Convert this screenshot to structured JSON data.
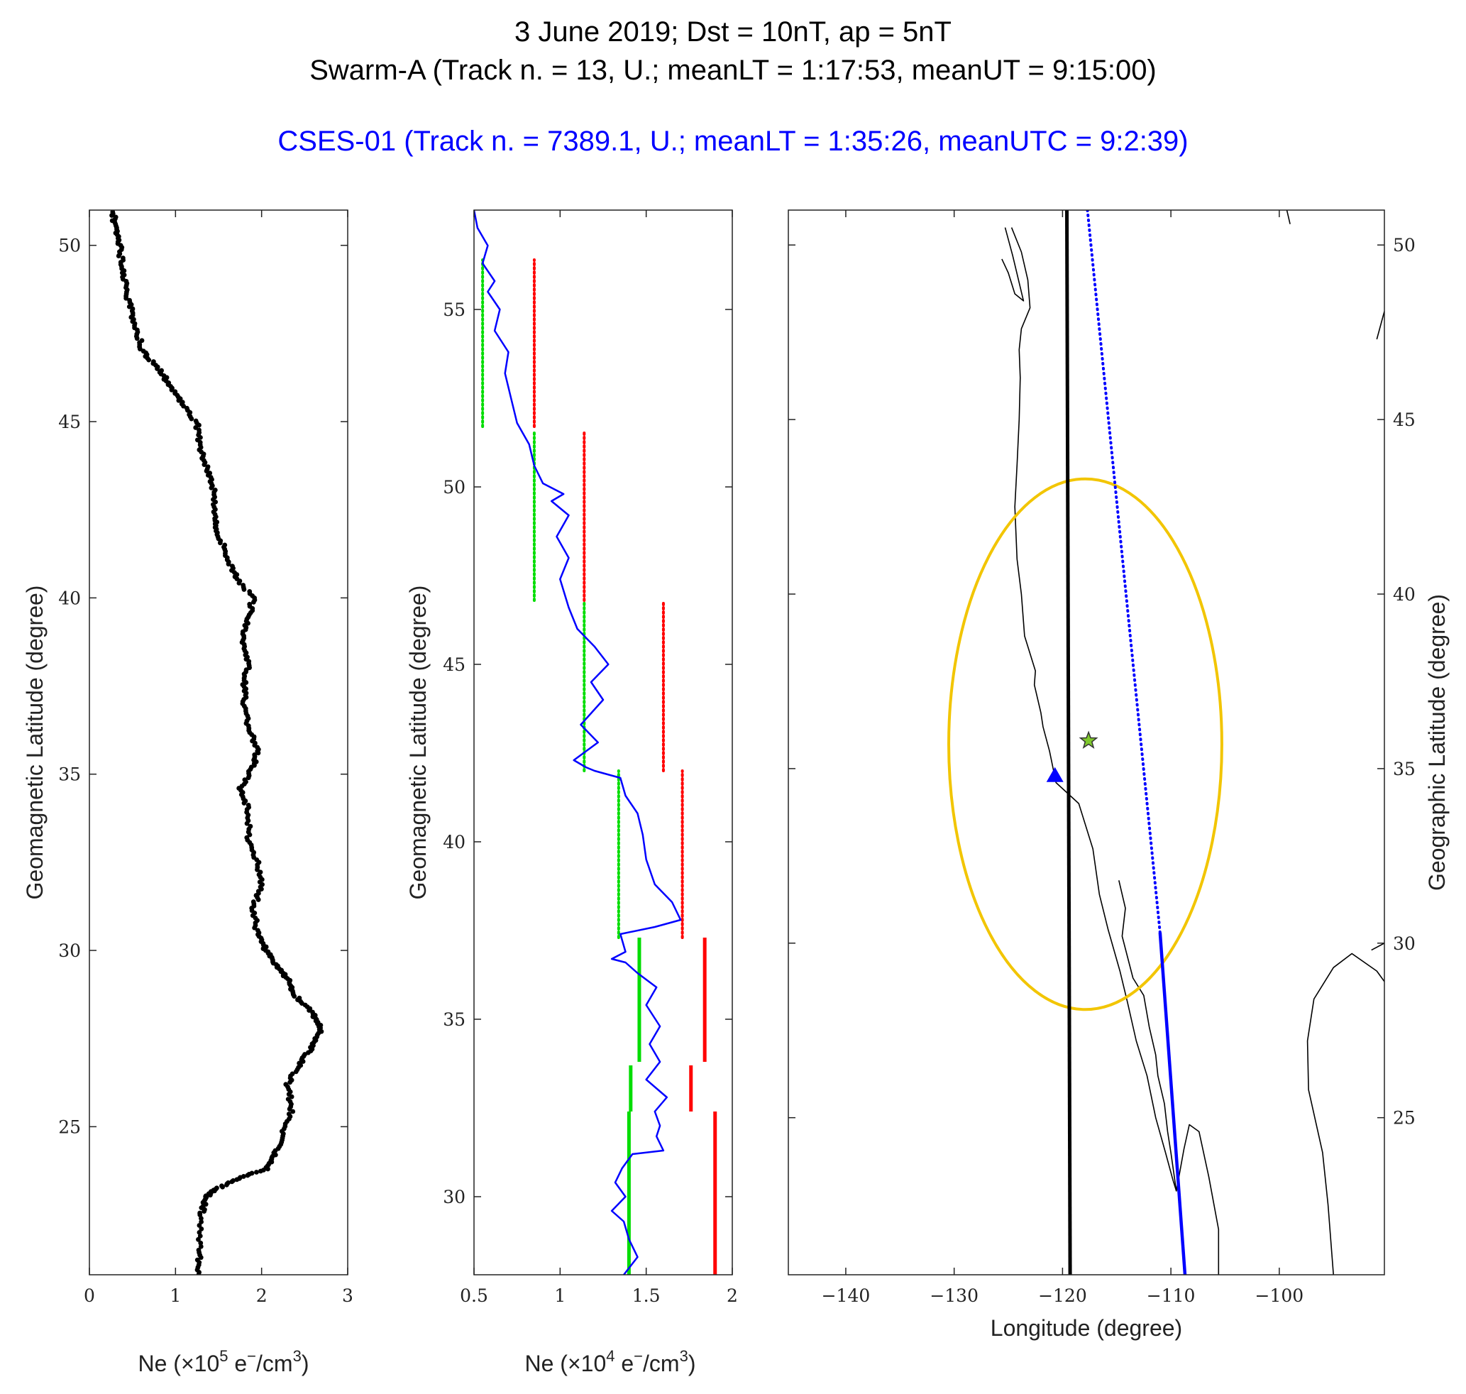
{
  "titles": {
    "line1": "3 June 2019; Dst = 10nT, ap = 5nT",
    "line2": "Swarm-A (Track n. = 13, U.; meanLT = 1:17:53, meanUT = 9:15:00)",
    "line3": "CSES-01 (Track n. = 7389.1, U.; meanLT = 1:35:26, meanUTC = 9:2:39)"
  },
  "colors": {
    "swarm": "#000000",
    "cses": "#0000ff",
    "mean_marker": "#00dd00",
    "threshold_marker": "#ff0000",
    "ellipse": "#f2c500",
    "epicenter_star": "#7fc92c",
    "station_triangle": "#0000ff",
    "coast": "#000000"
  },
  "chart_data": [
    {
      "id": "swarm-profile",
      "type": "scatter",
      "xlim": [
        0,
        3
      ],
      "ylim": [
        20.8,
        51
      ],
      "xticks": [
        "0",
        "1",
        "2",
        "3"
      ],
      "yticks": [
        "25",
        "30",
        "35",
        "40",
        "45",
        "50"
      ],
      "ylabel": "Geomagnetic Latitude (degree)",
      "xlabel_prefix": "Ne (×10",
      "xlabel_exp": "5",
      "xlabel_unit": " e",
      "xlabel_sup": "−",
      "xlabel_tail": "/cm",
      "xlabel_sup3": "3",
      "xlabel_close": ")",
      "series": [
        {
          "name": "Swarm-A Ne",
          "points": [
            [
              1.27,
              20.8
            ],
            [
              1.28,
              21.5
            ],
            [
              1.3,
              22.5
            ],
            [
              1.35,
              23.0
            ],
            [
              1.45,
              23.2
            ],
            [
              1.7,
              23.5
            ],
            [
              2.05,
              23.8
            ],
            [
              2.15,
              24.2
            ],
            [
              2.25,
              24.8
            ],
            [
              2.35,
              25.5
            ],
            [
              2.3,
              26.2
            ],
            [
              2.45,
              26.8
            ],
            [
              2.6,
              27.3
            ],
            [
              2.7,
              27.8
            ],
            [
              2.6,
              28.2
            ],
            [
              2.4,
              28.7
            ],
            [
              2.3,
              29.2
            ],
            [
              2.15,
              29.6
            ],
            [
              2.05,
              30.0
            ],
            [
              1.95,
              30.5
            ],
            [
              1.9,
              31.2
            ],
            [
              2.0,
              31.8
            ],
            [
              1.95,
              32.5
            ],
            [
              1.85,
              33.2
            ],
            [
              1.85,
              34.0
            ],
            [
              1.75,
              34.6
            ],
            [
              1.9,
              35.2
            ],
            [
              1.95,
              35.7
            ],
            [
              1.85,
              36.3
            ],
            [
              1.8,
              37.0
            ],
            [
              1.8,
              37.6
            ],
            [
              1.85,
              38.2
            ],
            [
              1.78,
              38.8
            ],
            [
              1.85,
              39.4
            ],
            [
              1.9,
              40.0
            ],
            [
              1.7,
              40.6
            ],
            [
              1.6,
              41.2
            ],
            [
              1.5,
              41.8
            ],
            [
              1.45,
              42.3
            ],
            [
              1.45,
              43.0
            ],
            [
              1.38,
              43.6
            ],
            [
              1.3,
              44.2
            ],
            [
              1.25,
              44.9
            ],
            [
              1.08,
              45.5
            ],
            [
              0.95,
              46.0
            ],
            [
              0.8,
              46.5
            ],
            [
              0.62,
              47.0
            ],
            [
              0.55,
              47.6
            ],
            [
              0.48,
              48.2
            ],
            [
              0.42,
              48.8
            ],
            [
              0.38,
              49.4
            ],
            [
              0.35,
              50.0
            ],
            [
              0.3,
              50.5
            ],
            [
              0.27,
              51.0
            ]
          ]
        }
      ]
    },
    {
      "id": "cses-profile",
      "type": "line",
      "xlim": [
        0.5,
        2
      ],
      "ylim": [
        27.8,
        57.8
      ],
      "xticks": [
        "0.5",
        "1",
        "1.5",
        "2"
      ],
      "yticks": [
        "30",
        "35",
        "40",
        "45",
        "50",
        "55"
      ],
      "ylabel": "Geomagnetic Latitude (degree)",
      "xlabel_prefix": "Ne (×10",
      "xlabel_exp": "4",
      "xlabel_unit": " e",
      "xlabel_sup": "−",
      "xlabel_tail": "/cm",
      "xlabel_sup3": "3",
      "xlabel_close": ")",
      "series": [
        {
          "name": "CSES-01 Ne",
          "points": [
            [
              1.37,
              27.8
            ],
            [
              1.45,
              28.3
            ],
            [
              1.4,
              28.8
            ],
            [
              1.37,
              29.3
            ],
            [
              1.3,
              29.6
            ],
            [
              1.38,
              30.0
            ],
            [
              1.32,
              30.4
            ],
            [
              1.36,
              30.8
            ],
            [
              1.42,
              31.2
            ],
            [
              1.6,
              31.3
            ],
            [
              1.56,
              31.7
            ],
            [
              1.58,
              32.0
            ],
            [
              1.55,
              32.4
            ],
            [
              1.62,
              32.8
            ],
            [
              1.5,
              33.3
            ],
            [
              1.58,
              33.8
            ],
            [
              1.52,
              34.3
            ],
            [
              1.58,
              34.8
            ],
            [
              1.5,
              35.4
            ],
            [
              1.56,
              35.9
            ],
            [
              1.45,
              36.3
            ],
            [
              1.38,
              36.6
            ],
            [
              1.3,
              36.7
            ],
            [
              1.38,
              36.9
            ],
            [
              1.35,
              37.4
            ],
            [
              1.55,
              37.6
            ],
            [
              1.7,
              37.8
            ],
            [
              1.65,
              38.3
            ],
            [
              1.55,
              38.8
            ],
            [
              1.5,
              39.5
            ],
            [
              1.48,
              40.2
            ],
            [
              1.45,
              40.8
            ],
            [
              1.38,
              41.3
            ],
            [
              1.35,
              41.8
            ],
            [
              1.2,
              42.0
            ],
            [
              1.15,
              42.1
            ],
            [
              1.08,
              42.3
            ],
            [
              1.22,
              42.8
            ],
            [
              1.12,
              43.3
            ],
            [
              1.25,
              44.0
            ],
            [
              1.18,
              44.5
            ],
            [
              1.28,
              45.0
            ],
            [
              1.2,
              45.5
            ],
            [
              1.1,
              46.0
            ],
            [
              1.05,
              46.6
            ],
            [
              1.0,
              47.4
            ],
            [
              1.05,
              48.0
            ],
            [
              0.98,
              48.6
            ],
            [
              1.05,
              49.2
            ],
            [
              0.95,
              49.6
            ],
            [
              1.02,
              49.8
            ],
            [
              0.9,
              50.1
            ],
            [
              0.85,
              50.6
            ],
            [
              0.82,
              51.2
            ],
            [
              0.75,
              51.8
            ],
            [
              0.72,
              52.4
            ],
            [
              0.68,
              53.2
            ],
            [
              0.7,
              53.8
            ],
            [
              0.62,
              54.4
            ],
            [
              0.65,
              55.0
            ],
            [
              0.58,
              55.5
            ],
            [
              0.62,
              55.8
            ],
            [
              0.55,
              56.3
            ],
            [
              0.58,
              56.8
            ],
            [
              0.52,
              57.3
            ],
            [
              0.5,
              57.8
            ]
          ]
        }
      ],
      "segments": [
        {
          "kind": "mean",
          "x": 0.55,
          "y0": 51.7,
          "y1": 56.4,
          "style": "dotted"
        },
        {
          "kind": "threshold",
          "x": 0.85,
          "y0": 51.7,
          "y1": 56.4,
          "style": "dotted"
        },
        {
          "kind": "mean",
          "x": 0.85,
          "y0": 46.8,
          "y1": 51.6,
          "style": "dotted"
        },
        {
          "kind": "threshold",
          "x": 1.14,
          "y0": 46.8,
          "y1": 51.6,
          "style": "dotted"
        },
        {
          "kind": "mean",
          "x": 1.14,
          "y0": 42.0,
          "y1": 46.8,
          "style": "dotted"
        },
        {
          "kind": "threshold",
          "x": 1.6,
          "y0": 42.0,
          "y1": 46.8,
          "style": "dotted"
        },
        {
          "kind": "mean",
          "x": 1.34,
          "y0": 37.3,
          "y1": 42.0,
          "style": "dotted"
        },
        {
          "kind": "threshold",
          "x": 1.71,
          "y0": 37.3,
          "y1": 42.0,
          "style": "dotted"
        },
        {
          "kind": "mean",
          "x": 1.46,
          "y0": 33.8,
          "y1": 37.3,
          "style": "solid"
        },
        {
          "kind": "threshold",
          "x": 1.84,
          "y0": 33.8,
          "y1": 37.3,
          "style": "solid"
        },
        {
          "kind": "mean",
          "x": 1.41,
          "y0": 32.4,
          "y1": 33.7,
          "style": "solid"
        },
        {
          "kind": "threshold",
          "x": 1.76,
          "y0": 32.4,
          "y1": 33.7,
          "style": "solid"
        },
        {
          "kind": "mean",
          "x": 1.4,
          "y0": 27.8,
          "y1": 32.4,
          "style": "solid"
        },
        {
          "kind": "threshold",
          "x": 1.9,
          "y0": 27.8,
          "y1": 32.4,
          "style": "solid"
        }
      ]
    },
    {
      "id": "track-map",
      "type": "line",
      "xlim": [
        -145.3,
        -90.3
      ],
      "ylim": [
        20.5,
        51
      ],
      "xticks": [
        "−140",
        "−130",
        "−120",
        "−110",
        "−100"
      ],
      "yticks": [
        "25",
        "30",
        "35",
        "40",
        "45",
        "50"
      ],
      "xlabel": "Longitude (degree)",
      "ylabel": "Geographic Latitude (degree)",
      "series": [
        {
          "name": "Swarm-A track",
          "points": [
            [
              -119.6,
              51.0
            ],
            [
              -119.3,
              20.5
            ]
          ]
        },
        {
          "name": "CSES-01 track (dotted)",
          "points": [
            [
              -117.7,
              51.0
            ],
            [
              -111.0,
              30.3
            ]
          ]
        },
        {
          "name": "CSES-01 track (solid)",
          "points": [
            [
              -111.0,
              30.3
            ],
            [
              -108.7,
              20.5
            ]
          ]
        }
      ],
      "ellipse": {
        "center": [
          -117.9,
          35.7
        ],
        "radius_lon": 12.6,
        "radius_lat": 7.6
      },
      "epicenter": [
        -117.6,
        35.8
      ],
      "station": [
        -120.7,
        34.8
      ],
      "coast_main": [
        [
          -124.7,
          50.5
        ],
        [
          -123.8,
          49.8
        ],
        [
          -123.2,
          49.0
        ],
        [
          -123.0,
          48.2
        ],
        [
          -123.8,
          47.6
        ],
        [
          -124.0,
          47.0
        ],
        [
          -123.9,
          46.2
        ],
        [
          -124.0,
          45.0
        ],
        [
          -124.2,
          43.7
        ],
        [
          -124.4,
          42.5
        ],
        [
          -124.2,
          41.0
        ],
        [
          -123.8,
          40.0
        ],
        [
          -123.5,
          38.8
        ],
        [
          -122.5,
          37.8
        ],
        [
          -122.6,
          37.4
        ],
        [
          -122.0,
          36.6
        ],
        [
          -121.8,
          36.2
        ],
        [
          -121.2,
          35.5
        ],
        [
          -120.6,
          34.6
        ],
        [
          -118.5,
          34.0
        ],
        [
          -117.2,
          32.7
        ],
        [
          -116.6,
          31.4
        ],
        [
          -115.8,
          30.4
        ],
        [
          -114.7,
          29.2
        ],
        [
          -114.0,
          28.3
        ],
        [
          -113.2,
          27.2
        ],
        [
          -112.2,
          26.2
        ],
        [
          -111.4,
          25.0
        ],
        [
          -110.5,
          24.0
        ],
        [
          -109.8,
          23.2
        ],
        [
          -109.5,
          22.9
        ],
        [
          -108.8,
          24.1
        ],
        [
          -108.3,
          24.8
        ],
        [
          -107.4,
          24.6
        ],
        [
          -106.5,
          23.3
        ],
        [
          -105.6,
          21.8
        ],
        [
          -105.6,
          20.5
        ]
      ],
      "coast_baja": [
        [
          -114.8,
          31.8
        ],
        [
          -114.2,
          31.0
        ],
        [
          -114.5,
          30.2
        ],
        [
          -113.5,
          29.0
        ],
        [
          -112.5,
          28.5
        ],
        [
          -112.0,
          27.6
        ],
        [
          -111.4,
          26.8
        ],
        [
          -111.2,
          26.2
        ],
        [
          -110.6,
          25.4
        ],
        [
          -110.3,
          24.6
        ],
        [
          -110.0,
          24.0
        ],
        [
          -109.5,
          22.9
        ]
      ],
      "coast_island": [
        [
          -125.3,
          50.5
        ],
        [
          -124.6,
          49.7
        ],
        [
          -123.6,
          48.4
        ],
        [
          -124.4,
          48.6
        ],
        [
          -125.0,
          49.2
        ],
        [
          -125.6,
          49.6
        ]
      ],
      "coast_gulf": [
        [
          -95.0,
          20.5
        ],
        [
          -95.5,
          22.5
        ],
        [
          -96.0,
          24.0
        ],
        [
          -97.3,
          25.8
        ],
        [
          -97.4,
          27.2
        ],
        [
          -96.8,
          28.4
        ],
        [
          -95.0,
          29.3
        ],
        [
          -93.3,
          29.7
        ],
        [
          -91.0,
          29.2
        ],
        [
          -90.3,
          28.9
        ]
      ],
      "coast_misc": [
        [
          [
            -91.0,
            47.3
          ],
          [
            -90.3,
            48.1
          ]
        ],
        [
          [
            -99.3,
            51.0
          ],
          [
            -99.0,
            50.6
          ]
        ],
        [
          [
            -90.3,
            30.0
          ],
          [
            -91.5,
            29.8
          ]
        ]
      ]
    }
  ]
}
